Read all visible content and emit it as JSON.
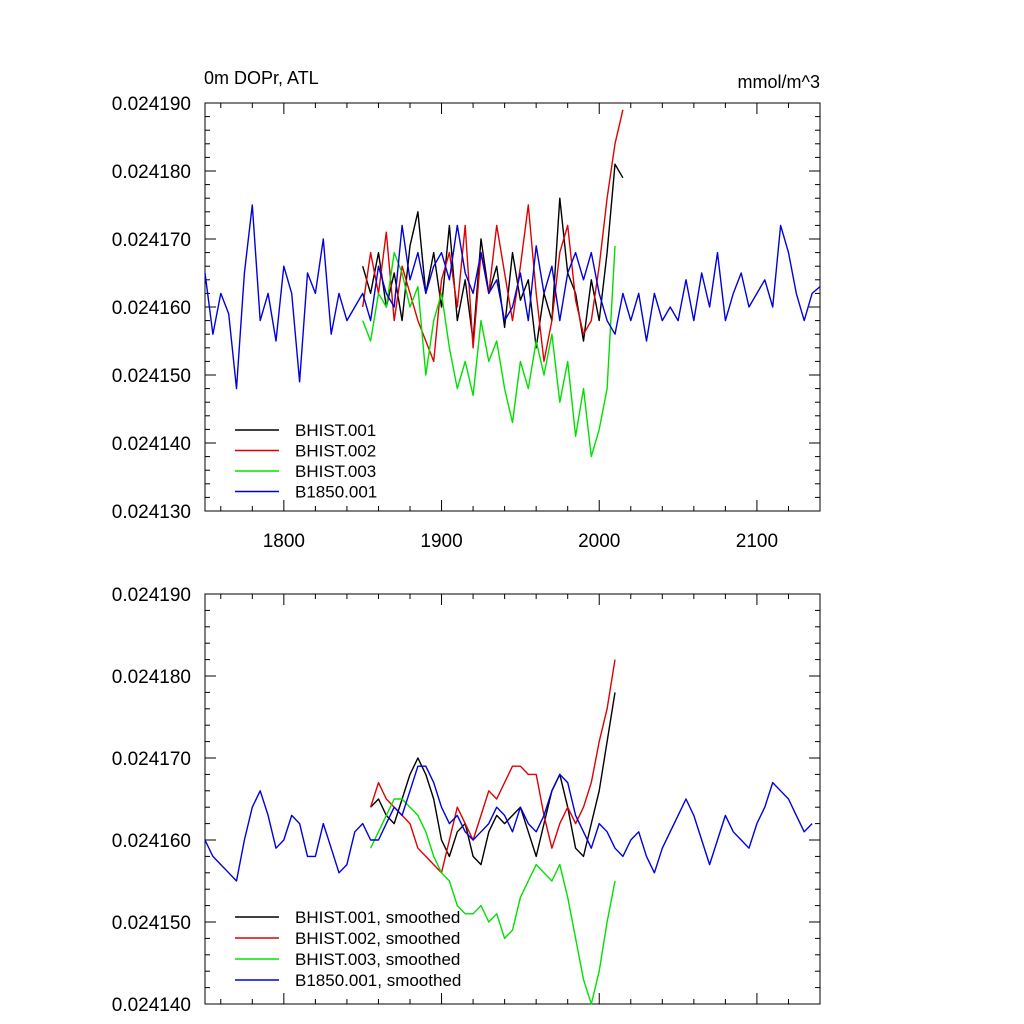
{
  "colors": {
    "BHIST.001": "#000000",
    "BHIST.002": "#e00000",
    "BHIST.003": "#00e000",
    "B1850.001": "#0000e0"
  },
  "chart_data": [
    {
      "type": "line",
      "title_left": "0m DOPr, ATL",
      "title_right": "mmol/m^3",
      "xlim": [
        1750,
        2140
      ],
      "ylim": [
        0.02413,
        0.02419
      ],
      "x_ticks": [
        1800,
        1900,
        2000,
        2100
      ],
      "x_tick_labels": [
        "1800",
        "1900",
        "2000",
        "2100"
      ],
      "y_ticks": [
        0.02413,
        0.02414,
        0.02415,
        0.02416,
        0.02417,
        0.02418,
        0.02419
      ],
      "y_tick_labels": [
        "0.024130",
        "0.024140",
        "0.024150",
        "0.024160",
        "0.024170",
        "0.024180",
        "0.024190"
      ],
      "legend_position": "bottom-left",
      "series": [
        {
          "name": "BHIST.001",
          "label": "BHIST.001",
          "x": [
            1850,
            1855,
            1860,
            1865,
            1870,
            1875,
            1880,
            1885,
            1890,
            1895,
            1900,
            1905,
            1910,
            1915,
            1920,
            1925,
            1930,
            1935,
            1940,
            1945,
            1950,
            1955,
            1960,
            1965,
            1970,
            1975,
            1980,
            1985,
            1990,
            1995,
            2000,
            2005,
            2010,
            2015
          ],
          "y": [
            0.024166,
            0.024162,
            0.024168,
            0.02416,
            0.024165,
            0.024158,
            0.024169,
            0.024174,
            0.024162,
            0.024168,
            0.02416,
            0.024172,
            0.024158,
            0.024164,
            0.024155,
            0.02417,
            0.024162,
            0.024166,
            0.024157,
            0.024168,
            0.024161,
            0.024164,
            0.024154,
            0.024162,
            0.024158,
            0.024176,
            0.024165,
            0.024162,
            0.024155,
            0.024164,
            0.024158,
            0.024168,
            0.024181,
            0.024179
          ]
        },
        {
          "name": "BHIST.002",
          "label": "BHIST.002",
          "x": [
            1850,
            1855,
            1860,
            1865,
            1870,
            1875,
            1880,
            1885,
            1890,
            1895,
            1900,
            1905,
            1910,
            1915,
            1920,
            1925,
            1930,
            1935,
            1940,
            1945,
            1950,
            1955,
            1960,
            1965,
            1970,
            1975,
            1980,
            1985,
            1990,
            1995,
            2000,
            2005,
            2010,
            2015
          ],
          "y": [
            0.02416,
            0.024168,
            0.024162,
            0.024171,
            0.024158,
            0.024166,
            0.024162,
            0.024158,
            0.024155,
            0.024152,
            0.024164,
            0.024168,
            0.02416,
            0.024172,
            0.024154,
            0.024168,
            0.024162,
            0.024172,
            0.024165,
            0.024158,
            0.024166,
            0.024175,
            0.024162,
            0.024152,
            0.024158,
            0.024168,
            0.024172,
            0.024161,
            0.024156,
            0.024158,
            0.024166,
            0.024176,
            0.024184,
            0.024189
          ]
        },
        {
          "name": "BHIST.003",
          "label": "BHIST.003",
          "x": [
            1850,
            1855,
            1860,
            1865,
            1870,
            1875,
            1880,
            1885,
            1890,
            1895,
            1900,
            1905,
            1910,
            1915,
            1920,
            1925,
            1930,
            1935,
            1940,
            1945,
            1950,
            1955,
            1960,
            1965,
            1970,
            1975,
            1980,
            1985,
            1990,
            1995,
            2000,
            2005,
            2010
          ],
          "y": [
            0.024158,
            0.024155,
            0.024162,
            0.02416,
            0.024168,
            0.024165,
            0.02416,
            0.024163,
            0.02415,
            0.024158,
            0.024162,
            0.024154,
            0.024148,
            0.024152,
            0.024147,
            0.024158,
            0.024152,
            0.024155,
            0.024148,
            0.024143,
            0.024152,
            0.024148,
            0.024155,
            0.02415,
            0.024156,
            0.024146,
            0.024152,
            0.024141,
            0.024148,
            0.024138,
            0.024142,
            0.024148,
            0.024169
          ]
        },
        {
          "name": "B1850.001",
          "label": "B1850.001",
          "x": [
            1750,
            1755,
            1760,
            1765,
            1770,
            1775,
            1780,
            1785,
            1790,
            1795,
            1800,
            1805,
            1810,
            1815,
            1820,
            1825,
            1830,
            1835,
            1840,
            1845,
            1850,
            1855,
            1860,
            1865,
            1870,
            1875,
            1880,
            1885,
            1890,
            1895,
            1900,
            1905,
            1910,
            1915,
            1920,
            1925,
            1930,
            1935,
            1940,
            1945,
            1950,
            1955,
            1960,
            1965,
            1970,
            1975,
            1980,
            1985,
            1990,
            1995,
            2000,
            2005,
            2010,
            2015,
            2020,
            2025,
            2030,
            2035,
            2040,
            2045,
            2050,
            2055,
            2060,
            2065,
            2070,
            2075,
            2080,
            2085,
            2090,
            2095,
            2100,
            2105,
            2110,
            2115,
            2120,
            2125,
            2130,
            2135,
            2140
          ],
          "y": [
            0.024165,
            0.024156,
            0.024162,
            0.024159,
            0.024148,
            0.024165,
            0.024175,
            0.024158,
            0.024162,
            0.024155,
            0.024166,
            0.024162,
            0.024149,
            0.024165,
            0.024162,
            0.02417,
            0.024156,
            0.024162,
            0.024158,
            0.02416,
            0.024162,
            0.024158,
            0.024166,
            0.024162,
            0.02416,
            0.024172,
            0.024164,
            0.024168,
            0.024162,
            0.024166,
            0.024168,
            0.024164,
            0.024172,
            0.024165,
            0.024162,
            0.024168,
            0.024162,
            0.024164,
            0.024158,
            0.02416,
            0.024165,
            0.024158,
            0.024169,
            0.024162,
            0.024166,
            0.024158,
            0.024165,
            0.024168,
            0.024164,
            0.024168,
            0.024162,
            0.024158,
            0.024156,
            0.024162,
            0.024158,
            0.024162,
            0.024155,
            0.024162,
            0.024158,
            0.02416,
            0.024158,
            0.024164,
            0.024158,
            0.024165,
            0.02416,
            0.024168,
            0.024158,
            0.024162,
            0.024165,
            0.02416,
            0.024162,
            0.024164,
            0.02416,
            0.024172,
            0.024168,
            0.024162,
            0.024158,
            0.024162,
            0.024163
          ]
        }
      ]
    },
    {
      "type": "line",
      "xlim": [
        1750,
        2140
      ],
      "ylim": [
        0.02414,
        0.02419
      ],
      "x_ticks": [
        1800,
        1900,
        2000,
        2100
      ],
      "y_ticks": [
        0.02414,
        0.02415,
        0.02416,
        0.02417,
        0.02418,
        0.02419
      ],
      "y_tick_labels": [
        "0.024140",
        "0.024150",
        "0.024160",
        "0.024170",
        "0.024180",
        "0.024190"
      ],
      "legend_position": "bottom-left",
      "series": [
        {
          "name": "BHIST.001",
          "label": "BHIST.001, smoothed",
          "x": [
            1855,
            1860,
            1865,
            1870,
            1875,
            1880,
            1885,
            1890,
            1895,
            1900,
            1905,
            1910,
            1915,
            1920,
            1925,
            1930,
            1935,
            1940,
            1945,
            1950,
            1955,
            1960,
            1965,
            1970,
            1975,
            1980,
            1985,
            1990,
            1995,
            2000,
            2005,
            2010
          ],
          "y": [
            0.024164,
            0.024165,
            0.024163,
            0.024162,
            0.024165,
            0.024168,
            0.02417,
            0.024168,
            0.024165,
            0.02416,
            0.024158,
            0.024161,
            0.024162,
            0.024158,
            0.024157,
            0.024161,
            0.024163,
            0.024162,
            0.024163,
            0.024164,
            0.024161,
            0.024158,
            0.024162,
            0.024166,
            0.024168,
            0.024164,
            0.024159,
            0.024158,
            0.024162,
            0.024166,
            0.024172,
            0.024178
          ]
        },
        {
          "name": "BHIST.002",
          "label": "BHIST.002, smoothed",
          "x": [
            1855,
            1860,
            1865,
            1870,
            1875,
            1880,
            1885,
            1890,
            1895,
            1900,
            1905,
            1910,
            1915,
            1920,
            1925,
            1930,
            1935,
            1940,
            1945,
            1950,
            1955,
            1960,
            1965,
            1970,
            1975,
            1980,
            1985,
            1990,
            1995,
            2000,
            2005,
            2010
          ],
          "y": [
            0.024164,
            0.024167,
            0.024165,
            0.024164,
            0.024163,
            0.024162,
            0.024159,
            0.024158,
            0.024157,
            0.024156,
            0.02416,
            0.024164,
            0.024162,
            0.02416,
            0.024163,
            0.024166,
            0.024165,
            0.024167,
            0.024169,
            0.024169,
            0.024168,
            0.024168,
            0.024163,
            0.024159,
            0.024162,
            0.024164,
            0.024162,
            0.024164,
            0.024167,
            0.024172,
            0.024176,
            0.024182
          ]
        },
        {
          "name": "BHIST.003",
          "label": "BHIST.003, smoothed",
          "x": [
            1855,
            1860,
            1865,
            1870,
            1875,
            1880,
            1885,
            1890,
            1895,
            1900,
            1905,
            1910,
            1915,
            1920,
            1925,
            1930,
            1935,
            1940,
            1945,
            1950,
            1955,
            1960,
            1965,
            1970,
            1975,
            1980,
            1985,
            1990,
            1995,
            2000,
            2005,
            2010
          ],
          "y": [
            0.024159,
            0.024161,
            0.024163,
            0.024165,
            0.024165,
            0.024164,
            0.024163,
            0.024161,
            0.024158,
            0.024156,
            0.024155,
            0.024152,
            0.024151,
            0.024151,
            0.024152,
            0.02415,
            0.024151,
            0.024148,
            0.024149,
            0.024153,
            0.024155,
            0.024157,
            0.024156,
            0.024155,
            0.024157,
            0.024153,
            0.024148,
            0.024143,
            0.02414,
            0.024144,
            0.02415,
            0.024155
          ]
        },
        {
          "name": "B1850.001",
          "label": "B1850.001, smoothed",
          "x": [
            1750,
            1755,
            1760,
            1765,
            1770,
            1775,
            1780,
            1785,
            1790,
            1795,
            1800,
            1805,
            1810,
            1815,
            1820,
            1825,
            1830,
            1835,
            1840,
            1845,
            1850,
            1855,
            1860,
            1865,
            1870,
            1875,
            1880,
            1885,
            1890,
            1895,
            1900,
            1905,
            1910,
            1915,
            1920,
            1925,
            1930,
            1935,
            1940,
            1945,
            1950,
            1955,
            1960,
            1965,
            1970,
            1975,
            1980,
            1985,
            1990,
            1995,
            2000,
            2005,
            2010,
            2015,
            2020,
            2025,
            2030,
            2035,
            2040,
            2045,
            2050,
            2055,
            2060,
            2065,
            2070,
            2075,
            2080,
            2085,
            2090,
            2095,
            2100,
            2105,
            2110,
            2115,
            2120,
            2125,
            2130,
            2135
          ],
          "y": [
            0.02416,
            0.024158,
            0.024157,
            0.024156,
            0.024155,
            0.02416,
            0.024164,
            0.024166,
            0.024163,
            0.024159,
            0.02416,
            0.024163,
            0.024162,
            0.024158,
            0.024158,
            0.024162,
            0.024159,
            0.024156,
            0.024157,
            0.024161,
            0.024162,
            0.02416,
            0.02416,
            0.024162,
            0.024164,
            0.024163,
            0.024166,
            0.024169,
            0.024169,
            0.024167,
            0.024164,
            0.024162,
            0.024163,
            0.024161,
            0.02416,
            0.024161,
            0.024162,
            0.024164,
            0.024163,
            0.024161,
            0.024164,
            0.024162,
            0.024161,
            0.024163,
            0.024166,
            0.024168,
            0.024167,
            0.024163,
            0.024161,
            0.024159,
            0.024162,
            0.024161,
            0.024159,
            0.024158,
            0.02416,
            0.024161,
            0.024158,
            0.024156,
            0.024159,
            0.024161,
            0.024163,
            0.024165,
            0.024163,
            0.02416,
            0.024157,
            0.02416,
            0.024163,
            0.024161,
            0.02416,
            0.024159,
            0.024162,
            0.024164,
            0.024167,
            0.024166,
            0.024165,
            0.024163,
            0.024161,
            0.024162
          ]
        }
      ]
    }
  ]
}
